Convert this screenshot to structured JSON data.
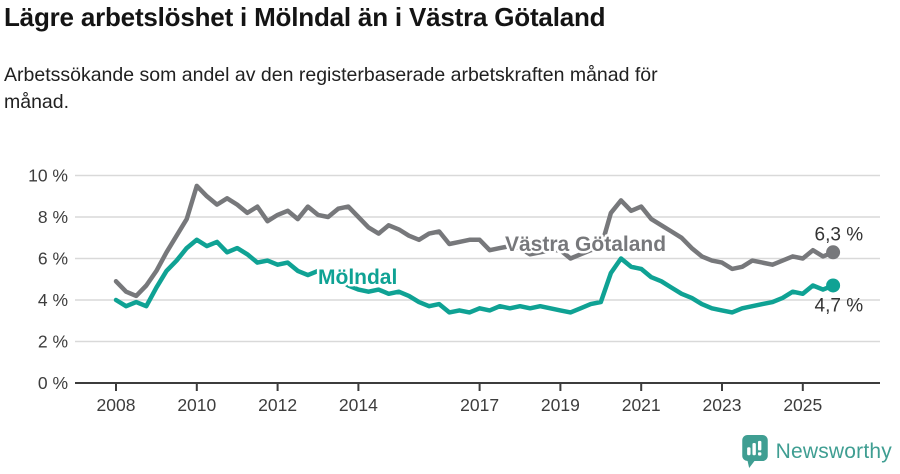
{
  "header": {
    "title": "Lägre arbetslöshet i Mölndal än i Västra Götaland",
    "subtitle_line1": "Arbetssökande som andel av den registerbaserade arbetskraften månad för",
    "subtitle_line2": "månad."
  },
  "footer": {
    "brand": "Newsworthy",
    "brand_color": "#3f9e92",
    "logo_icon": "newsworthy-pin-barchart-icon"
  },
  "chart_data": {
    "type": "line",
    "title": "Lägre arbetslöshet i Mölndal än i Västra Götaland",
    "subtitle": "Arbetssökande som andel av den registerbaserade arbetskraften månad för månad.",
    "grid": true,
    "x_axis": {
      "unit": "year",
      "tick_years": [
        2008,
        2010,
        2012,
        2014,
        2017,
        2019,
        2021,
        2023,
        2025
      ],
      "range": [
        2008,
        2026
      ]
    },
    "y_axis": {
      "ticks": [
        0,
        2,
        4,
        6,
        8,
        10
      ],
      "tick_labels": [
        "0 %",
        "2 %",
        "4 %",
        "6 %",
        "8 %",
        "10 %"
      ],
      "range": [
        0,
        10
      ]
    },
    "sampling": {
      "start_year": 2008.0,
      "step_years": 0.25
    },
    "series": [
      {
        "name": "Västra Götaland",
        "color": "#77787b",
        "end_label": "6,3 %",
        "end_value": 6.3,
        "values": [
          4.9,
          4.4,
          4.2,
          4.7,
          5.4,
          6.3,
          7.1,
          7.9,
          9.5,
          9.0,
          8.6,
          8.9,
          8.6,
          8.2,
          8.5,
          7.8,
          8.1,
          8.3,
          7.9,
          8.5,
          8.1,
          8.0,
          8.4,
          8.5,
          8.0,
          7.5,
          7.2,
          7.6,
          7.4,
          7.1,
          6.9,
          7.2,
          7.3,
          6.7,
          6.8,
          6.9,
          6.9,
          6.4,
          6.5,
          6.6,
          6.5,
          6.2,
          6.3,
          6.4,
          6.4,
          6.0,
          6.2,
          6.4,
          6.5,
          8.2,
          8.8,
          8.3,
          8.5,
          7.9,
          7.6,
          7.3,
          7.0,
          6.5,
          6.1,
          5.9,
          5.8,
          5.5,
          5.6,
          5.9,
          5.8,
          5.7,
          5.9,
          6.1,
          6.0,
          6.4,
          6.1,
          6.3
        ]
      },
      {
        "name": "Mölndal",
        "color": "#0fa294",
        "end_label": "4,7 %",
        "end_value": 4.7,
        "values": [
          4.0,
          3.7,
          3.9,
          3.7,
          4.6,
          5.4,
          5.9,
          6.5,
          6.9,
          6.6,
          6.8,
          6.3,
          6.5,
          6.2,
          5.8,
          5.9,
          5.7,
          5.8,
          5.4,
          5.2,
          5.4,
          4.9,
          5.0,
          4.7,
          4.5,
          4.4,
          4.5,
          4.3,
          4.4,
          4.2,
          3.9,
          3.7,
          3.8,
          3.4,
          3.5,
          3.4,
          3.6,
          3.5,
          3.7,
          3.6,
          3.7,
          3.6,
          3.7,
          3.6,
          3.5,
          3.4,
          3.6,
          3.8,
          3.9,
          5.3,
          6.0,
          5.6,
          5.5,
          5.1,
          4.9,
          4.6,
          4.3,
          4.1,
          3.8,
          3.6,
          3.5,
          3.4,
          3.6,
          3.7,
          3.8,
          3.9,
          4.1,
          4.4,
          4.3,
          4.7,
          4.5,
          4.7
        ]
      }
    ]
  }
}
